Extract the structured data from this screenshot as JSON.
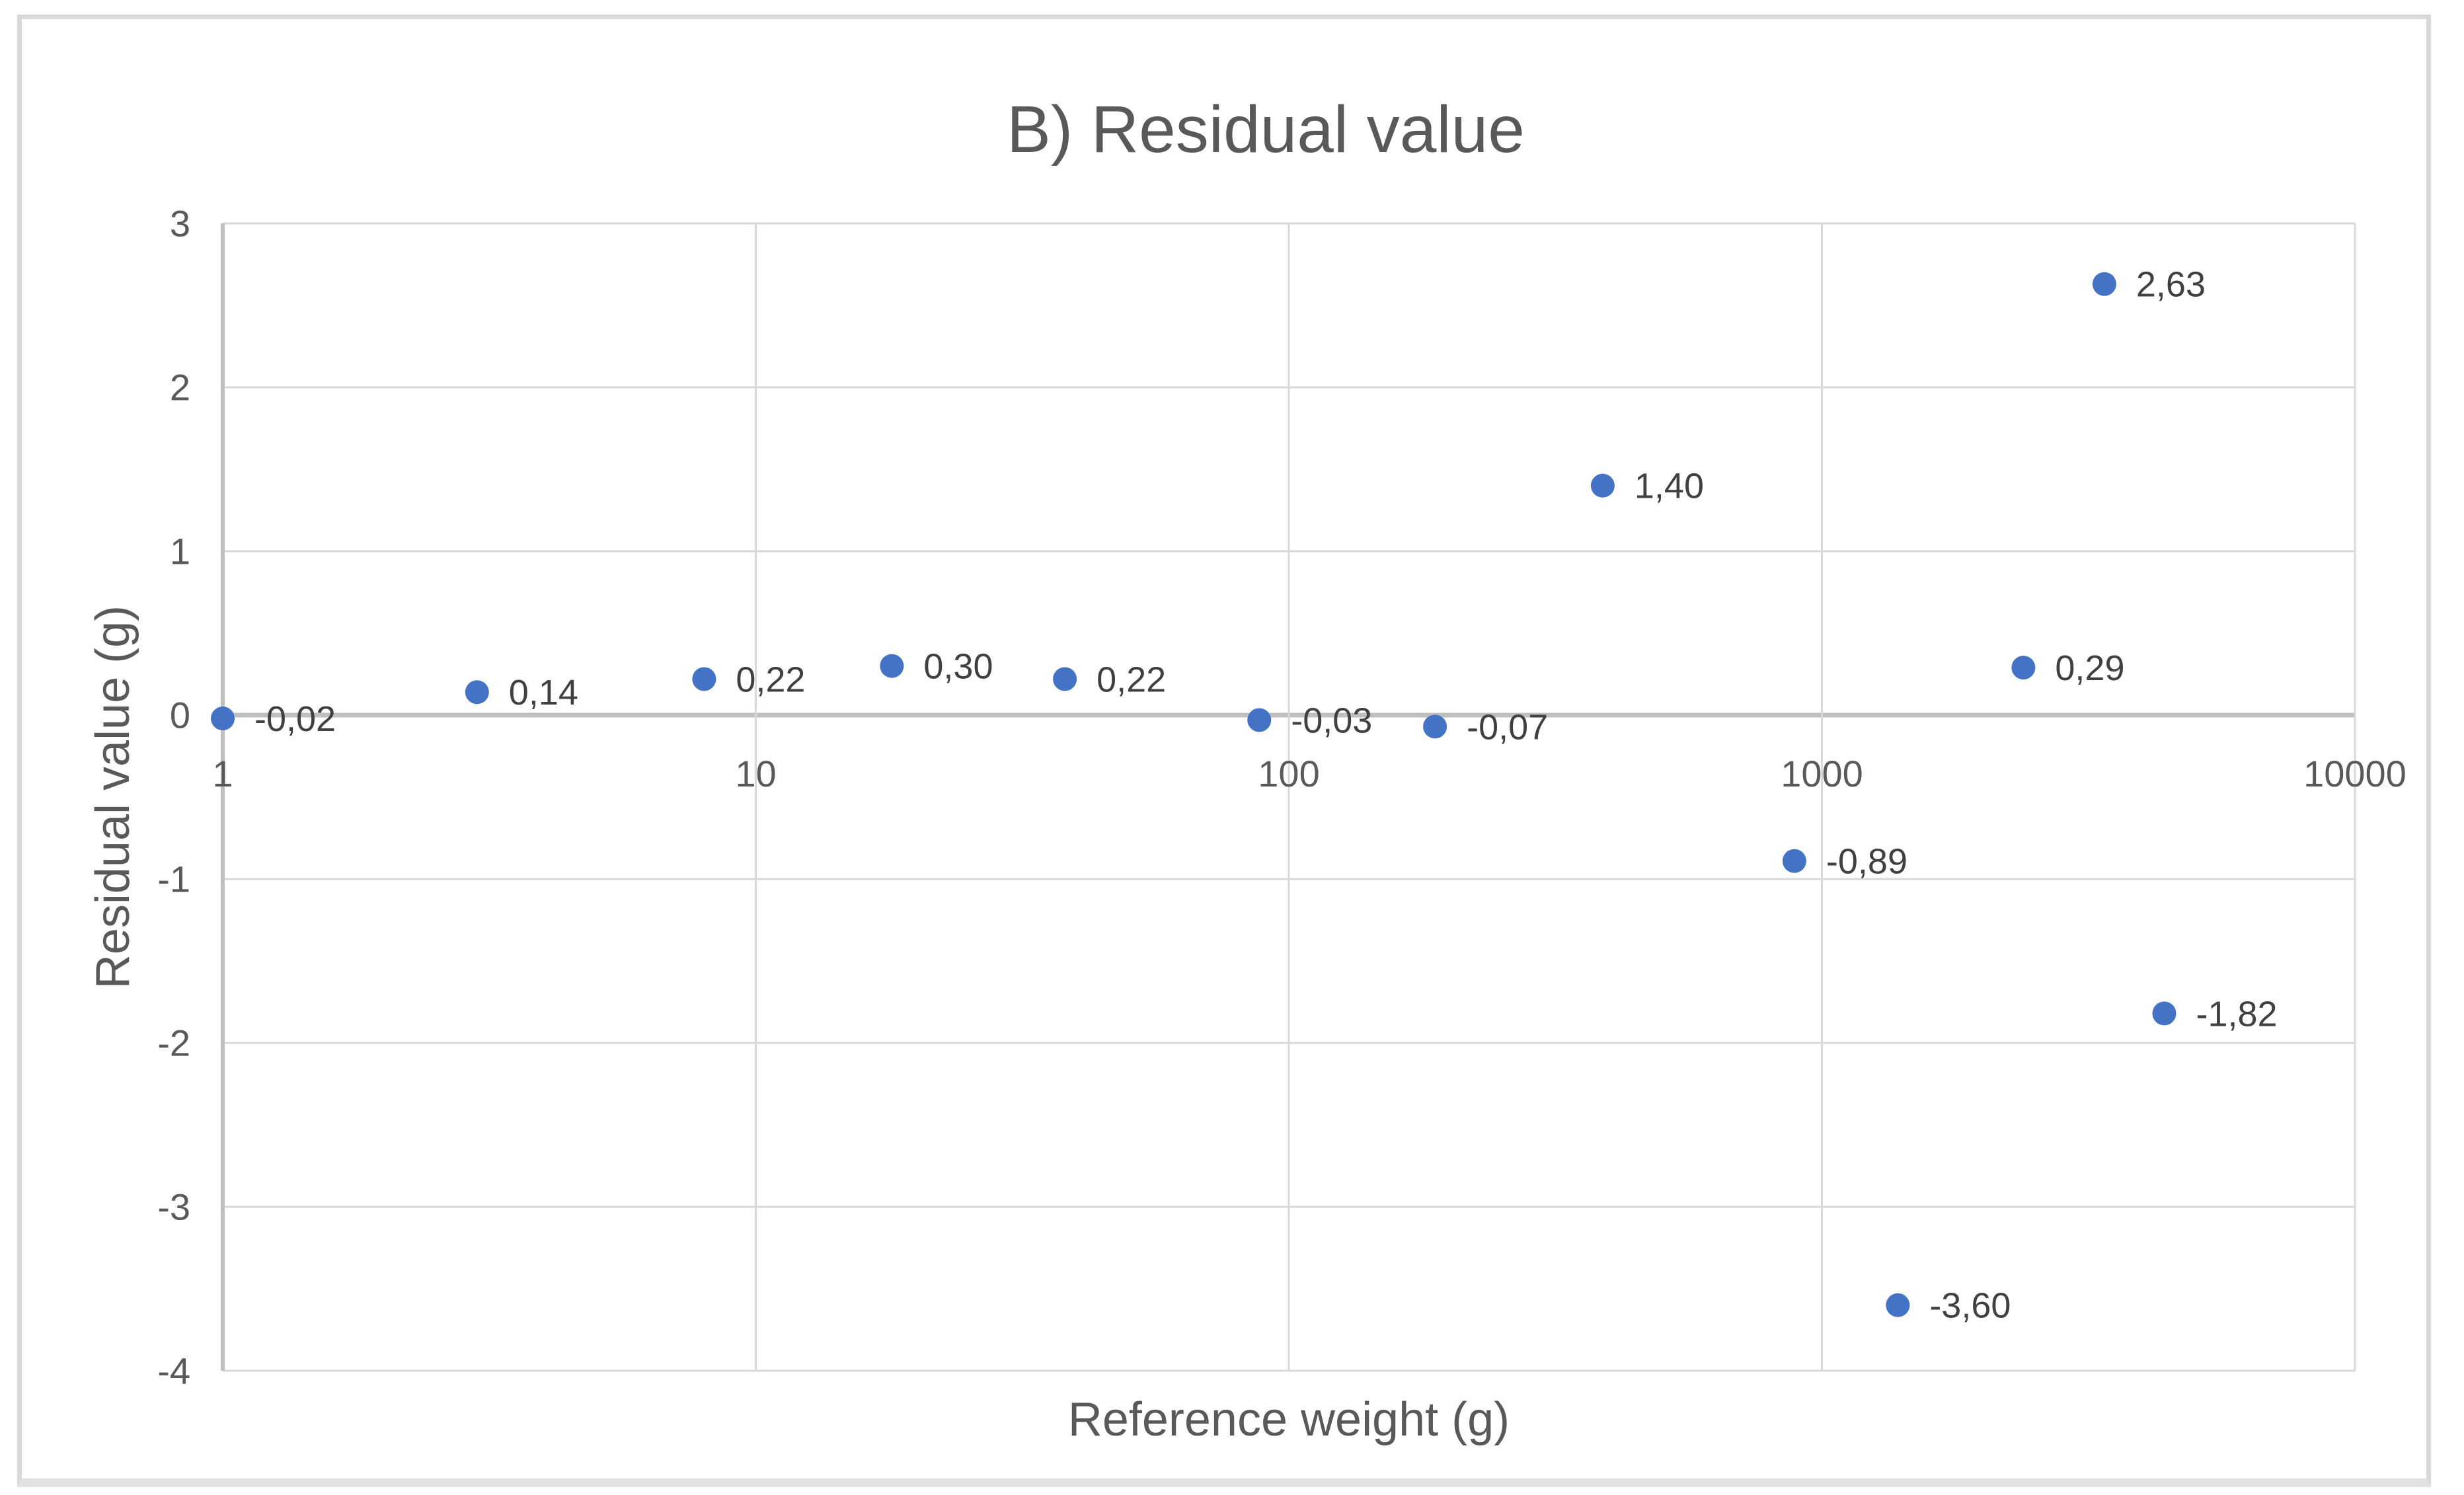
{
  "page": {
    "background": "#FFFFFF"
  },
  "frame": {
    "border_color": "#D9D9D9",
    "bottom_edge_color": "#E2E2E2"
  },
  "colors": {
    "marker": "#4472C4",
    "gridline": "#D9D9D9",
    "axis_line": "#BFBFBF",
    "tick_text": "#595959",
    "title_text": "#595959",
    "data_label_text": "#404040"
  },
  "chart_data": {
    "type": "scatter",
    "title": "B) Residual value",
    "xlabel": "Reference weight (g)",
    "ylabel": "Residual value (g)",
    "x_scale": "log",
    "xlim": [
      1,
      10000
    ],
    "ylim": [
      -4,
      3
    ],
    "x_ticks": [
      1,
      10,
      100,
      1000,
      10000
    ],
    "y_ticks": [
      3,
      2,
      1,
      0,
      -1,
      -2,
      -3,
      -4
    ],
    "grid": true,
    "legend_position": "none",
    "decimal_separator": ",",
    "marker_color": "#4472C4",
    "series_name": "Residual value",
    "points": [
      {
        "x": 1,
        "y": -0.02,
        "label": "-0,02"
      },
      {
        "x": 3,
        "y": 0.14,
        "label": "0,14"
      },
      {
        "x": 8,
        "y": 0.22,
        "label": "0,22"
      },
      {
        "x": 18,
        "y": 0.3,
        "label": "0,30"
      },
      {
        "x": 38,
        "y": 0.22,
        "label": "0,22"
      },
      {
        "x": 88,
        "y": -0.03,
        "label": "-0,03"
      },
      {
        "x": 188,
        "y": -0.07,
        "label": "-0,07"
      },
      {
        "x": 388,
        "y": 1.4,
        "label": "1,40"
      },
      {
        "x": 888,
        "y": -0.89,
        "label": "-0,89"
      },
      {
        "x": 1388,
        "y": -3.6,
        "label": "-3,60"
      },
      {
        "x": 2388,
        "y": 0.29,
        "label": "0,29"
      },
      {
        "x": 3388,
        "y": 2.63,
        "label": "2,63"
      },
      {
        "x": 4388,
        "y": -1.82,
        "label": "-1,82"
      }
    ]
  }
}
